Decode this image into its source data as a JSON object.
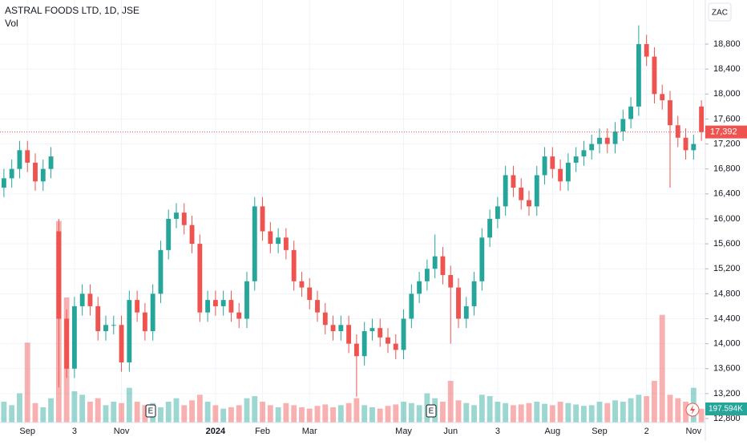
{
  "chart_data": {
    "type": "candlestick",
    "title": "ASTRAL FOODS LTD, 1D, JSE",
    "volume_label": "Vol",
    "currency": "ZAC",
    "categories": [
      null,
      null,
      null,
      "Sep",
      null,
      null,
      null,
      null,
      null,
      "3",
      null,
      null,
      null,
      null,
      null,
      "Nov",
      null,
      null,
      null,
      null,
      null,
      null,
      null,
      null,
      null,
      null,
      null,
      "2024",
      null,
      null,
      null,
      null,
      null,
      "Feb",
      null,
      null,
      null,
      null,
      null,
      "Mar",
      null,
      null,
      null,
      null,
      null,
      null,
      null,
      null,
      null,
      null,
      null,
      "May",
      null,
      null,
      null,
      null,
      null,
      "Jun",
      null,
      null,
      null,
      null,
      null,
      "3",
      null,
      null,
      null,
      null,
      null,
      null,
      "Aug",
      null,
      null,
      null,
      null,
      null,
      "Sep",
      null,
      null,
      null,
      null,
      null,
      "2",
      null,
      null,
      null,
      null,
      null,
      "Nov",
      null
    ],
    "open": [
      16500,
      16650,
      16800,
      17100,
      16900,
      16600,
      16800,
      15800,
      14400,
      13600,
      14600,
      14800,
      14600,
      14200,
      14300,
      14300,
      13700,
      14700,
      14500,
      14200,
      14800,
      15500,
      16000,
      16100,
      15900,
      15600,
      14500,
      14700,
      14600,
      14700,
      14500,
      14400,
      15000,
      16200,
      15800,
      15600,
      15700,
      15500,
      15000,
      14900,
      14700,
      14500,
      14300,
      14200,
      14300,
      14000,
      13800,
      14200,
      14250,
      14100,
      14000,
      13900,
      14400,
      14800,
      15000,
      15200,
      15400,
      15100,
      14900,
      14400,
      14600,
      15000,
      15700,
      16000,
      16200,
      16700,
      16500,
      16300,
      16200,
      16700,
      17000,
      16800,
      16600,
      16900,
      17000,
      17100,
      17200,
      17300,
      17200,
      17400,
      17600,
      17800,
      18800,
      18600,
      18000,
      17900,
      17500,
      17300,
      17100,
      17800
    ],
    "high": [
      16800,
      16950,
      17250,
      17250,
      17050,
      16950,
      17150,
      16000,
      14550,
      14750,
      14950,
      14950,
      14750,
      14450,
      14450,
      14450,
      14850,
      14850,
      14650,
      14950,
      15650,
      16150,
      16250,
      16250,
      16050,
      15750,
      14850,
      14850,
      14850,
      14850,
      14650,
      15150,
      16350,
      16350,
      15950,
      15850,
      15850,
      15650,
      15150,
      15050,
      14850,
      14650,
      14450,
      14450,
      14450,
      14150,
      14350,
      14400,
      14400,
      14250,
      14150,
      14550,
      14950,
      15150,
      15350,
      15750,
      15550,
      15250,
      15050,
      14750,
      15150,
      15850,
      16150,
      16350,
      16850,
      16850,
      16650,
      16450,
      16850,
      17150,
      17150,
      16950,
      17050,
      17150,
      17250,
      17350,
      17450,
      17450,
      17550,
      17750,
      17950,
      19100,
      18950,
      18750,
      18150,
      18050,
      17650,
      17450,
      17350,
      17900
    ],
    "low": [
      16350,
      16500,
      16650,
      16750,
      16450,
      16450,
      16650,
      13300,
      13450,
      13450,
      14450,
      14450,
      14050,
      14050,
      14150,
      13550,
      13550,
      14350,
      14050,
      14050,
      14650,
      15350,
      15850,
      15750,
      15450,
      14350,
      14350,
      14450,
      14450,
      14350,
      14250,
      14250,
      14850,
      15650,
      15450,
      15450,
      15350,
      14850,
      14750,
      14550,
      14350,
      14150,
      14050,
      14050,
      13850,
      13150,
      13650,
      14050,
      13950,
      13850,
      13750,
      13750,
      14250,
      14650,
      14850,
      15050,
      14950,
      14000,
      14250,
      14250,
      14450,
      14850,
      15550,
      15850,
      16050,
      16350,
      16150,
      16050,
      16050,
      16550,
      16650,
      16450,
      16450,
      16750,
      16850,
      16950,
      17050,
      17050,
      17050,
      17250,
      17450,
      17650,
      18450,
      17850,
      17750,
      16500,
      17150,
      16950,
      16950,
      17250
    ],
    "close": [
      16650,
      16800,
      17100,
      16900,
      16600,
      16800,
      17000,
      14400,
      13600,
      14600,
      14800,
      14600,
      14200,
      14300,
      14300,
      13700,
      14700,
      14500,
      14200,
      14800,
      15500,
      16000,
      16100,
      15900,
      15600,
      14500,
      14700,
      14600,
      14700,
      14500,
      14400,
      15000,
      16200,
      15800,
      15600,
      15700,
      15500,
      15000,
      14900,
      14700,
      14500,
      14300,
      14200,
      14300,
      14000,
      13800,
      14200,
      14250,
      14100,
      14000,
      13900,
      14400,
      14800,
      15000,
      15200,
      15400,
      15100,
      14900,
      14400,
      14600,
      15000,
      15700,
      16000,
      16200,
      16700,
      16500,
      16300,
      16200,
      16700,
      17000,
      16800,
      16600,
      16900,
      17000,
      17100,
      17200,
      17300,
      17200,
      17400,
      17600,
      17800,
      18800,
      18600,
      18000,
      17900,
      17500,
      17300,
      17100,
      17200,
      17392
    ],
    "volume": [
      300000,
      250000,
      420000,
      1150000,
      280000,
      220000,
      350000,
      2900000,
      1800000,
      450000,
      400000,
      300000,
      350000,
      250000,
      300000,
      280000,
      500000,
      300000,
      250000,
      280000,
      220000,
      300000,
      350000,
      250000,
      320000,
      400000,
      300000,
      250000,
      200000,
      220000,
      250000,
      350000,
      380000,
      300000,
      250000,
      220000,
      280000,
      250000,
      220000,
      200000,
      240000,
      260000,
      220000,
      250000,
      280000,
      350000,
      250000,
      220000,
      200000,
      240000,
      260000,
      300000,
      280000,
      250000,
      420000,
      350000,
      300000,
      600000,
      320000,
      280000,
      250000,
      400000,
      380000,
      300000,
      280000,
      250000,
      260000,
      280000,
      300000,
      270000,
      250000,
      300000,
      280000,
      260000,
      240000,
      250000,
      300000,
      280000,
      320000,
      300000,
      350000,
      400000,
      380000,
      600000,
      1550000,
      400000,
      350000,
      300000,
      500000,
      197594
    ],
    "up_color": "#26a69a",
    "down_color": "#ef5350",
    "ylim": [
      12736,
      19507
    ],
    "yticks": [
      {
        "value": 12800,
        "label": "12,800"
      },
      {
        "value": 13200,
        "label": "13,200"
      },
      {
        "value": 13600,
        "label": "13,600"
      },
      {
        "value": 14000,
        "label": "14,000"
      },
      {
        "value": 14400,
        "label": "14,400"
      },
      {
        "value": 14800,
        "label": "14,800"
      },
      {
        "value": 15200,
        "label": "15,200"
      },
      {
        "value": 15600,
        "label": "15,600"
      },
      {
        "value": 16000,
        "label": "16,000"
      },
      {
        "value": 16400,
        "label": "16,400"
      },
      {
        "value": 16800,
        "label": "16,800"
      },
      {
        "value": 17200,
        "label": "17,200"
      },
      {
        "value": 17600,
        "label": "17,600"
      },
      {
        "value": 18000,
        "label": "18,000"
      },
      {
        "value": 18400,
        "label": "18,400"
      },
      {
        "value": 18800,
        "label": "18,800"
      }
    ],
    "volume_lim": [
      0,
      3000000
    ],
    "grid": true,
    "last_price_label": "17,392",
    "last_volume_label": "197.594K",
    "earnings_markers": [
      "E",
      "E"
    ]
  }
}
